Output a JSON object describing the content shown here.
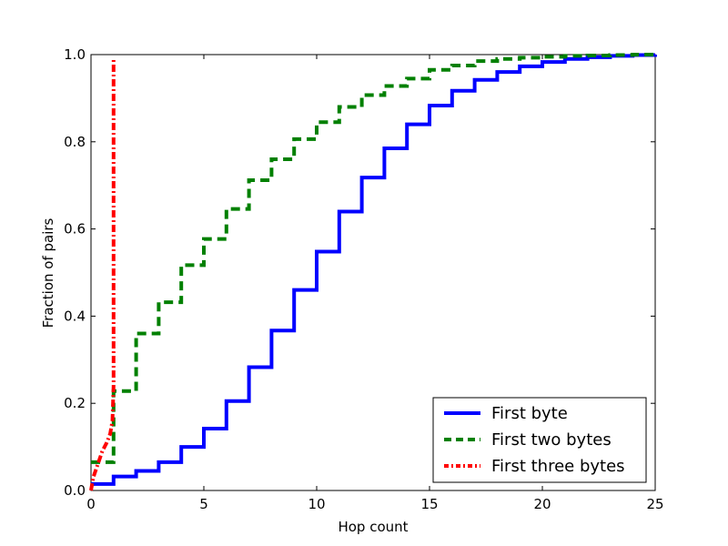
{
  "chart_data": {
    "type": "line",
    "xlabel": "Hop count",
    "ylabel": "Fraction of pairs",
    "xlim": [
      0,
      25
    ],
    "ylim": [
      0.0,
      1.0
    ],
    "x_ticks": [
      0,
      5,
      10,
      15,
      20,
      25
    ],
    "y_ticks": [
      "0.0",
      "0.2",
      "0.4",
      "0.6",
      "0.8",
      "1.0"
    ],
    "grid": false,
    "legend_position": "bottom-right",
    "series": [
      {
        "name": "First byte",
        "color": "#0000ff",
        "style": "solid",
        "step": true,
        "x": [
          0,
          1,
          2,
          3,
          4,
          5,
          6,
          7,
          8,
          9,
          10,
          11,
          12,
          13,
          14,
          15,
          16,
          17,
          18,
          19,
          20,
          21,
          22,
          23,
          24,
          25
        ],
        "y": [
          0.015,
          0.032,
          0.045,
          0.065,
          0.1,
          0.142,
          0.205,
          0.283,
          0.367,
          0.46,
          0.548,
          0.64,
          0.718,
          0.785,
          0.84,
          0.883,
          0.917,
          0.942,
          0.96,
          0.973,
          0.983,
          0.99,
          0.994,
          0.997,
          0.999,
          1.0
        ]
      },
      {
        "name": "First two bytes",
        "color": "#008000",
        "style": "dashed",
        "step": true,
        "x": [
          0,
          1,
          2,
          3,
          4,
          5,
          6,
          7,
          8,
          9,
          10,
          11,
          12,
          13,
          14,
          15,
          16,
          17,
          18,
          19,
          20,
          21,
          22,
          23,
          24,
          25
        ],
        "y": [
          0.065,
          0.228,
          0.36,
          0.432,
          0.517,
          0.577,
          0.646,
          0.712,
          0.76,
          0.806,
          0.845,
          0.88,
          0.907,
          0.928,
          0.945,
          0.965,
          0.975,
          0.985,
          0.99,
          0.993,
          0.995,
          0.997,
          0.998,
          0.999,
          1.0,
          1.0
        ]
      },
      {
        "name": "First three bytes",
        "color": "#ff0000",
        "style": "dashdot",
        "step": false,
        "x": [
          0,
          0.1,
          0.3,
          0.5,
          0.7,
          0.85,
          0.95,
          1.0,
          1.0
        ],
        "y": [
          0.0,
          0.03,
          0.06,
          0.09,
          0.11,
          0.13,
          0.16,
          0.24,
          0.99
        ]
      }
    ]
  }
}
